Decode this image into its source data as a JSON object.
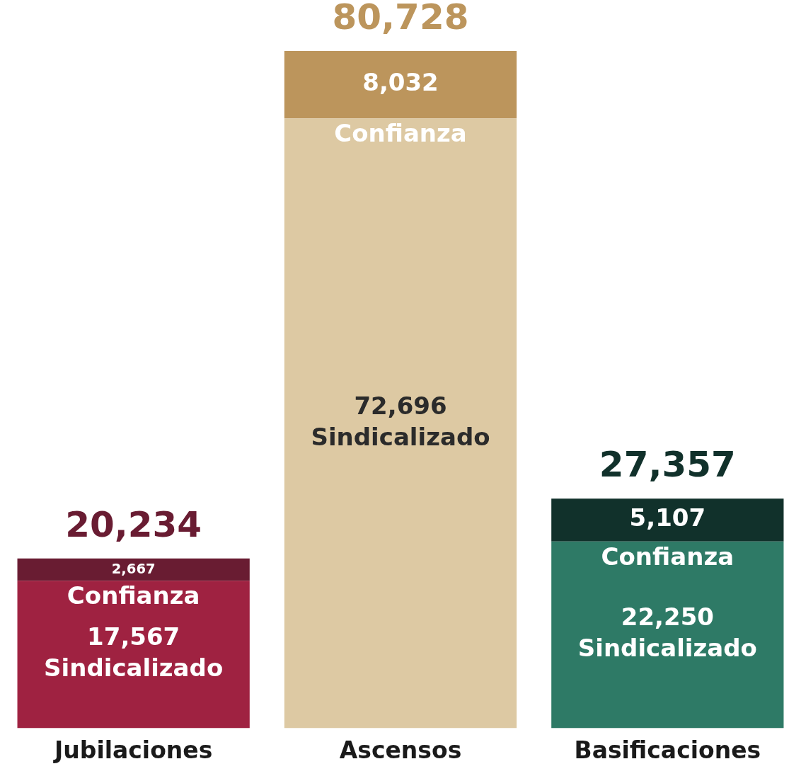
{
  "chart_data": {
    "type": "bar",
    "stacked": true,
    "categories": [
      "Jubilaciones",
      "Ascensos",
      "Basificaciones"
    ],
    "series": [
      {
        "name": "Sindicalizado",
        "colors": [
          "#9f2241",
          "#ddc9a3",
          "#2e7a66"
        ],
        "values": [
          17567,
          72696,
          22250
        ],
        "value_labels": [
          "17,567",
          "72,696",
          "22,250"
        ]
      },
      {
        "name": "Confianza",
        "colors": [
          "#691c32",
          "#bc955c",
          "#11312b"
        ],
        "values": [
          2667,
          8032,
          5107
        ],
        "value_labels": [
          "2,667",
          "8,032",
          "5,107"
        ]
      }
    ],
    "totals": [
      "20,234",
      "80,728",
      "27,357"
    ],
    "legend": false,
    "grid": false
  }
}
